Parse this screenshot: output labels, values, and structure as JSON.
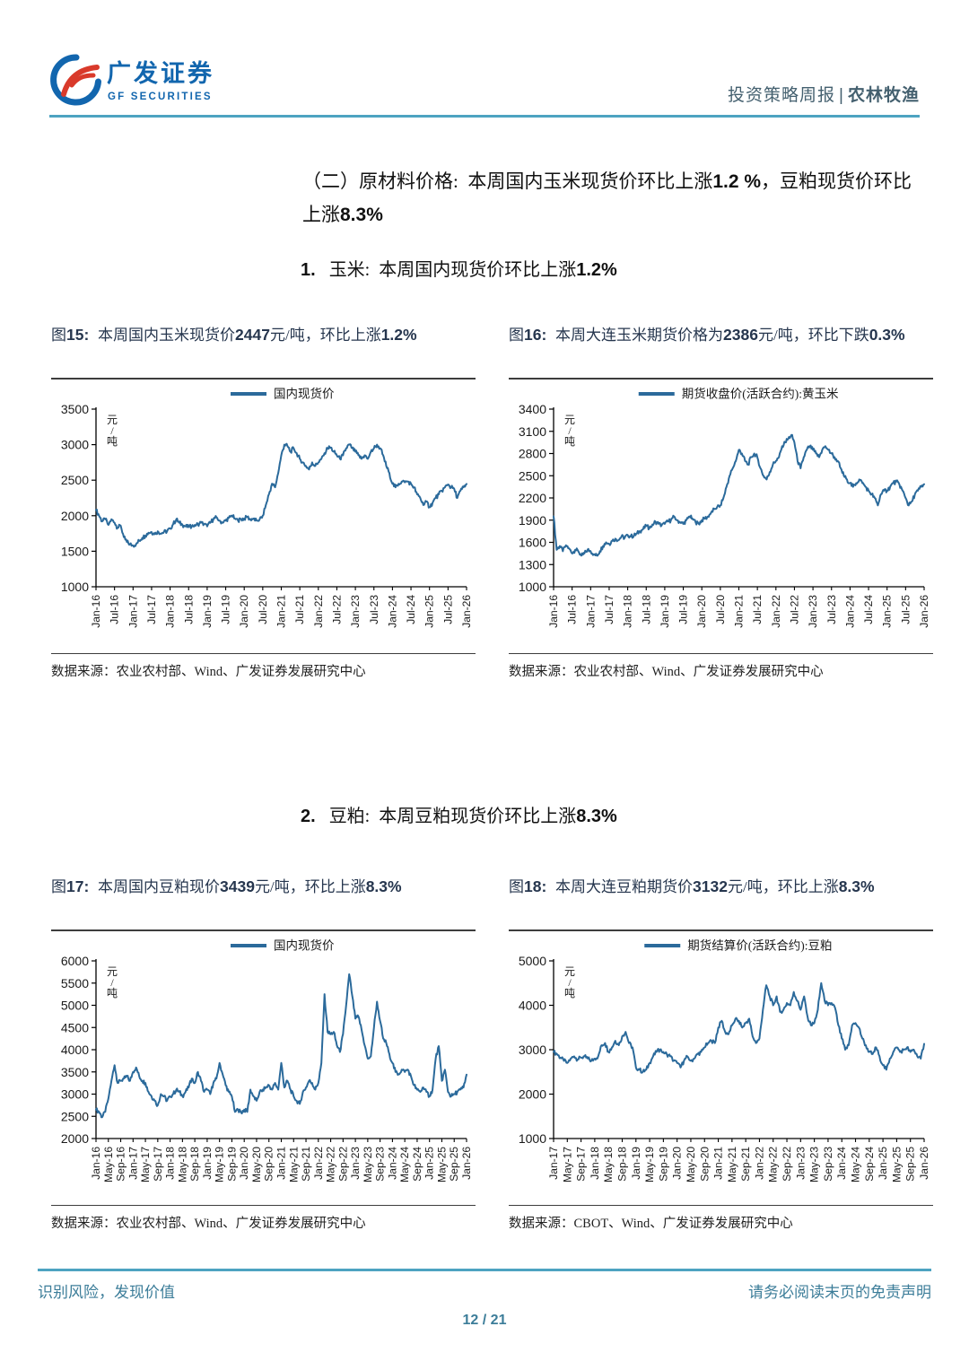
{
  "header": {
    "logo_cn": "广发证券",
    "logo_en": "GF SECURITIES",
    "report_type": "投资策略周报",
    "separator": "|",
    "sector": "农林牧渔"
  },
  "section_heading_parts": [
    {
      "text": "（二）原材料价格:  本周国内玉米现货价环比上涨",
      "bold": false
    },
    {
      "text": "1.2 %",
      "bold": true
    },
    {
      "text": "，豆粕现货价环比上涨",
      "bold": false
    },
    {
      "text": "8.3%",
      "bold": true
    }
  ],
  "sub1_parts": [
    {
      "text": "1.",
      "bold": true
    },
    {
      "text": "   玉米:  本周国内现货价环比上涨",
      "bold": false
    },
    {
      "text": "1.2%",
      "bold": true
    }
  ],
  "sub2_parts": [
    {
      "text": "2.",
      "bold": true
    },
    {
      "text": "   豆粕:  本周豆粕现货价环比上涨",
      "bold": false
    },
    {
      "text": "8.3%",
      "bold": true
    }
  ],
  "figures": [
    {
      "title_parts": [
        {
          "text": "图",
          "bold": false
        },
        {
          "text": "15:  ",
          "bold": true
        },
        {
          "text": "本周国内玉米现货价",
          "bold": false
        },
        {
          "text": "2447",
          "bold": true
        },
        {
          "text": "元/吨，环比上涨",
          "bold": false
        },
        {
          "text": "1.2%",
          "bold": true
        }
      ],
      "source_label": "数据来源：",
      "source": "农业农村部、Wind、广发证券发展研究中心"
    },
    {
      "title_parts": [
        {
          "text": "图",
          "bold": false
        },
        {
          "text": "16:  ",
          "bold": true
        },
        {
          "text": "本周大连玉米期货价格为",
          "bold": false
        },
        {
          "text": "2386",
          "bold": true
        },
        {
          "text": "元/吨，环比下跌",
          "bold": false
        },
        {
          "text": "0.3%",
          "bold": true
        }
      ],
      "source_label": "数据来源：",
      "source": "农业农村部、Wind、广发证券发展研究中心"
    },
    {
      "title_parts": [
        {
          "text": "图",
          "bold": false
        },
        {
          "text": "17:  ",
          "bold": true
        },
        {
          "text": "本周国内豆粕现价",
          "bold": false
        },
        {
          "text": "3439",
          "bold": true
        },
        {
          "text": "元/吨，环比上涨",
          "bold": false
        },
        {
          "text": "8.3%",
          "bold": true
        }
      ],
      "source_label": "数据来源：",
      "source": "农业农村部、Wind、广发证券发展研究中心"
    },
    {
      "title_parts": [
        {
          "text": "图",
          "bold": false
        },
        {
          "text": "18:  ",
          "bold": true
        },
        {
          "text": "本周大连豆粕期货价",
          "bold": false
        },
        {
          "text": "3132",
          "bold": true
        },
        {
          "text": "元/吨，环比上涨",
          "bold": false
        },
        {
          "text": "8.3%",
          "bold": true
        }
      ],
      "source_label": "数据来源：",
      "source": "CBOT、Wind、广发证券发展研究中心"
    }
  ],
  "chart_data": [
    {
      "type": "line",
      "title": "本周国内玉米现货价2447元/吨，环比上涨1.2%",
      "ylabel": "元/吨",
      "ylim": [
        1000,
        3500
      ],
      "ystep": 500,
      "y_tick_labels": [
        "1000",
        "1500",
        "2000",
        "2500",
        "3000",
        "3500"
      ],
      "grid": false,
      "legend_position": "top",
      "line_color": "#2b6a9b",
      "points_per_tick": 6,
      "x_tick_labels": [
        "Jan-16",
        "Jul-16",
        "Jan-17",
        "Jul-17",
        "Jan-18",
        "Jul-18",
        "Jan-19",
        "Jul-19",
        "Jan-20",
        "Jul-20",
        "Jan-21",
        "Jul-21",
        "Jan-22",
        "Jul-22",
        "Jan-23",
        "Jul-23",
        "Jan-24",
        "Jul-24",
        "Jan-25",
        "Jul-25",
        "Jan-26"
      ],
      "series": [
        {
          "name": "国内现货价",
          "values": [
            2080,
            2000,
            1920,
            1950,
            1870,
            1950,
            1900,
            1830,
            1860,
            1700,
            1630,
            1600,
            1580,
            1600,
            1650,
            1690,
            1720,
            1760,
            1770,
            1740,
            1780,
            1750,
            1770,
            1780,
            1820,
            1880,
            1950,
            1900,
            1870,
            1850,
            1840,
            1850,
            1870,
            1880,
            1900,
            1880,
            1850,
            1900,
            1950,
            1980,
            1930,
            1900,
            1930,
            1970,
            2000,
            1960,
            1930,
            1950,
            1960,
            1980,
            1950,
            1960,
            1930,
            1950,
            2000,
            2150,
            2300,
            2450,
            2400,
            2600,
            2850,
            3000,
            2980,
            2900,
            2950,
            2880,
            2800,
            2750,
            2700,
            2650,
            2750,
            2700,
            2750,
            2800,
            2880,
            2950,
            2960,
            2900,
            2850,
            2800,
            2850,
            2950,
            3000,
            2950,
            2900,
            2850,
            2800,
            2850,
            2800,
            2900,
            2950,
            3000,
            2950,
            2850,
            2700,
            2600,
            2450,
            2400,
            2450,
            2480,
            2470,
            2480,
            2450,
            2400,
            2300,
            2250,
            2150,
            2200,
            2120,
            2180,
            2250,
            2300,
            2350,
            2400,
            2440,
            2400,
            2380,
            2250,
            2350,
            2400,
            2447
          ]
        }
      ]
    },
    {
      "type": "line",
      "title": "本周大连玉米期货价格为2386元/吨，环比下跌0.3%",
      "ylabel": "元/吨",
      "ylim": [
        1000,
        3400
      ],
      "ystep": 300,
      "y_tick_labels": [
        "1000",
        "1300",
        "1600",
        "1900",
        "2200",
        "2500",
        "2800",
        "3100",
        "3400"
      ],
      "grid": false,
      "legend_position": "top",
      "line_color": "#2b6a9b",
      "points_per_tick": 6,
      "x_tick_labels": [
        "Jan-16",
        "Jul-16",
        "Jan-17",
        "Jul-17",
        "Jan-18",
        "Jul-18",
        "Jan-19",
        "Jul-19",
        "Jan-20",
        "Jul-20",
        "Jan-21",
        "Jul-21",
        "Jan-22",
        "Jul-22",
        "Jan-23",
        "Jul-23",
        "Jan-24",
        "Jul-24",
        "Jan-25",
        "Jul-25",
        "Jan-26"
      ],
      "series": [
        {
          "name": "期货收盘价(活跃合约):黄玉米",
          "values": [
            1950,
            1500,
            1550,
            1480,
            1560,
            1520,
            1450,
            1500,
            1480,
            1420,
            1450,
            1500,
            1480,
            1440,
            1420,
            1480,
            1550,
            1600,
            1580,
            1620,
            1650,
            1630,
            1680,
            1660,
            1700,
            1680,
            1690,
            1720,
            1750,
            1780,
            1820,
            1790,
            1840,
            1880,
            1850,
            1830,
            1850,
            1880,
            1900,
            1950,
            1900,
            1870,
            1850,
            1900,
            1950,
            1920,
            1870,
            1850,
            1900,
            1920,
            1950,
            2000,
            2050,
            2080,
            2100,
            2200,
            2350,
            2500,
            2600,
            2700,
            2850,
            2800,
            2700,
            2650,
            2750,
            2800,
            2750,
            2600,
            2500,
            2450,
            2550,
            2650,
            2700,
            2750,
            2900,
            2950,
            3000,
            3050,
            2950,
            2700,
            2600,
            2750,
            2850,
            2900,
            2850,
            2800,
            2750,
            2850,
            2900,
            2850,
            2800,
            2750,
            2700,
            2600,
            2500,
            2450,
            2400,
            2350,
            2400,
            2450,
            2400,
            2350,
            2300,
            2250,
            2200,
            2100,
            2250,
            2300,
            2300,
            2350,
            2400,
            2420,
            2380,
            2300,
            2200,
            2100,
            2150,
            2250,
            2300,
            2350,
            2386
          ]
        }
      ]
    },
    {
      "type": "line",
      "title": "本周国内豆粕现价3439元/吨，环比上涨8.3%",
      "ylabel": "元/吨",
      "ylim": [
        2000,
        6000
      ],
      "ystep": 500,
      "y_tick_labels": [
        "2000",
        "2500",
        "3000",
        "3500",
        "4000",
        "4500",
        "5000",
        "5500",
        "6000"
      ],
      "grid": false,
      "legend_position": "top",
      "line_color": "#2b6a9b",
      "points_per_tick": 4,
      "x_tick_labels": [
        "Jan-16",
        "May-16",
        "Sep-16",
        "Jan-17",
        "May-17",
        "Sep-17",
        "Jan-18",
        "May-18",
        "Sep-18",
        "Jan-19",
        "May-19",
        "Sep-19",
        "Jan-20",
        "May-20",
        "Sep-20",
        "Jan-21",
        "May-21",
        "Sep-21",
        "Jan-22",
        "May-22",
        "Sep-22",
        "Jan-23",
        "May-23",
        "Sep-23",
        "Jan-24",
        "May-24",
        "Sep-24",
        "Jan-25",
        "May-25",
        "Sep-25",
        "Jan-26"
      ],
      "series": [
        {
          "name": "国内现货价",
          "values": [
            2650,
            2600,
            2480,
            2600,
            2900,
            3300,
            3650,
            3250,
            3300,
            3350,
            3400,
            3300,
            3500,
            3600,
            3400,
            3300,
            3250,
            3050,
            2950,
            2850,
            2750,
            3000,
            2950,
            2850,
            2950,
            3000,
            3100,
            3050,
            2950,
            3050,
            3150,
            3350,
            3250,
            3500,
            3300,
            3050,
            3100,
            3000,
            3250,
            3350,
            3700,
            3450,
            3200,
            3050,
            2950,
            2600,
            2650,
            2580,
            2650,
            2600,
            3100,
            2950,
            2850,
            3050,
            3100,
            3150,
            3200,
            3100,
            3250,
            3100,
            3700,
            3150,
            3300,
            3100,
            2950,
            2850,
            2780,
            3050,
            3150,
            3300,
            3250,
            3100,
            3250,
            3700,
            5250,
            4400,
            4350,
            4400,
            4100,
            3950,
            4350,
            5000,
            5700,
            5200,
            4700,
            4750,
            4450,
            4100,
            3800,
            3850,
            4500,
            5080,
            4650,
            4250,
            4150,
            3900,
            3700,
            3500,
            3450,
            3550,
            3500,
            3550,
            3400,
            3200,
            3100,
            3050,
            3150,
            3050,
            2950,
            3100,
            3800,
            4080,
            3300,
            3550,
            3050,
            2950,
            3000,
            3050,
            3100,
            3150,
            3439
          ]
        }
      ]
    },
    {
      "type": "line",
      "title": "本周大连豆粕期货价3132元/吨，环比上涨8.3%",
      "ylabel": "元/吨",
      "ylim": [
        1000,
        5000
      ],
      "ystep": 1000,
      "y_tick_labels": [
        "1000",
        "2000",
        "3000",
        "4000",
        "5000"
      ],
      "grid": false,
      "legend_position": "top",
      "line_color": "#2b6a9b",
      "points_per_tick": 4,
      "x_tick_labels": [
        "Jan-17",
        "May-17",
        "Sep-17",
        "Jan-18",
        "May-18",
        "Sep-18",
        "Jan-19",
        "May-19",
        "Sep-19",
        "Jan-20",
        "May-20",
        "Sep-20",
        "Jan-21",
        "May-21",
        "Sep-21",
        "Jan-22",
        "May-22",
        "Sep-22",
        "Jan-23",
        "May-23",
        "Sep-23",
        "Jan-24",
        "May-24",
        "Sep-24",
        "Jan-25",
        "May-25",
        "Sep-25",
        "Jan-26"
      ],
      "series": [
        {
          "name": "期货结算价(活跃合约):豆粕",
          "values": [
            2950,
            2900,
            2820,
            2750,
            2700,
            2800,
            2850,
            2780,
            2820,
            2850,
            2800,
            2750,
            2800,
            2850,
            3100,
            3150,
            2950,
            3050,
            3200,
            3100,
            3300,
            3400,
            3150,
            3050,
            2600,
            2550,
            2500,
            2550,
            2700,
            2850,
            2950,
            3000,
            2950,
            2900,
            2850,
            2750,
            2700,
            2600,
            2750,
            2850,
            2750,
            2800,
            2900,
            2950,
            3050,
            3150,
            3200,
            3150,
            3500,
            3650,
            3400,
            3350,
            3550,
            3700,
            3650,
            3500,
            3600,
            3700,
            3300,
            3150,
            3250,
            3900,
            4450,
            4200,
            4000,
            4200,
            3850,
            3900,
            4050,
            4000,
            4300,
            4100,
            3900,
            4200,
            3750,
            3550,
            3600,
            3900,
            4500,
            4100,
            4000,
            4050,
            3950,
            3550,
            3250,
            3000,
            3100,
            3550,
            3600,
            3500,
            3250,
            3100,
            2950,
            2900,
            3050,
            2850,
            2650,
            2550,
            2800,
            2950,
            3050,
            2950,
            3000,
            3050,
            2950,
            3000,
            2850,
            2800,
            3132
          ]
        }
      ]
    }
  ],
  "footer": {
    "slogan": "识别风险，发现价值",
    "disclaimer": "请务必阅读末页的免责声明",
    "page": "12 / 21"
  }
}
